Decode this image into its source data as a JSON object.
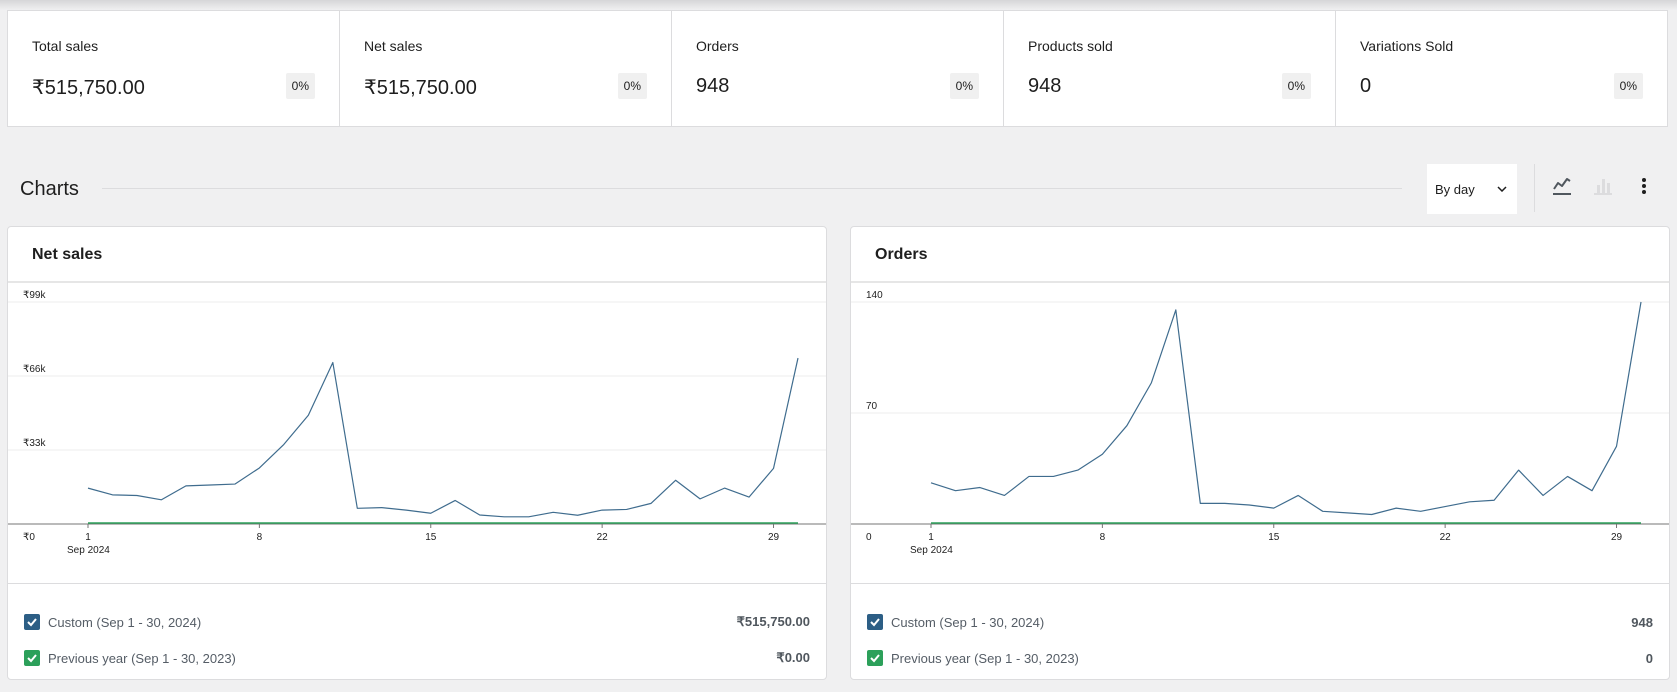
{
  "summary": [
    {
      "label": "Total sales",
      "value": "₹515,750.00",
      "delta": "0%"
    },
    {
      "label": "Net sales",
      "value": "₹515,750.00",
      "delta": "0%"
    },
    {
      "label": "Orders",
      "value": "948",
      "delta": "0%"
    },
    {
      "label": "Products sold",
      "value": "948",
      "delta": "0%"
    },
    {
      "label": "Variations Sold",
      "value": "0",
      "delta": "0%"
    }
  ],
  "charts_section": {
    "title": "Charts",
    "interval": "By day",
    "icons": [
      "line-chart-icon",
      "bar-chart-icon",
      "more-vertical-icon"
    ]
  },
  "colors": {
    "current": "#3f6c8e",
    "previous": "#2ca05a",
    "checkbox_current": "#2c5e85",
    "checkbox_previous": "#2ca05a"
  },
  "charts": [
    {
      "title": "Net sales",
      "y_ticks": [
        "₹99k",
        "₹66k",
        "₹33k",
        "₹0"
      ],
      "x_ticks": [
        "1",
        "8",
        "15",
        "22",
        "29"
      ],
      "x_subtitle": "Sep 2024",
      "legend": [
        {
          "label": "Custom (Sep 1 - 30, 2024)",
          "value": "₹515,750.00"
        },
        {
          "label": "Previous year (Sep 1 - 30, 2023)",
          "value": "₹0.00"
        }
      ]
    },
    {
      "title": "Orders",
      "y_ticks": [
        "140",
        "70",
        "0"
      ],
      "x_ticks": [
        "1",
        "8",
        "15",
        "22",
        "29"
      ],
      "x_subtitle": "Sep 2024",
      "legend": [
        {
          "label": "Custom (Sep 1 - 30, 2024)",
          "value": "948"
        },
        {
          "label": "Previous year (Sep 1 - 30, 2023)",
          "value": "0"
        }
      ]
    }
  ],
  "chart_data": [
    {
      "type": "line",
      "title": "Net sales",
      "x": [
        1,
        2,
        3,
        4,
        5,
        6,
        7,
        8,
        9,
        10,
        11,
        12,
        13,
        14,
        15,
        16,
        17,
        18,
        19,
        20,
        21,
        22,
        23,
        24,
        25,
        26,
        27,
        28,
        29,
        30
      ],
      "ylim": [
        0,
        99000
      ],
      "y_ticks": [
        0,
        33000,
        66000,
        99000
      ],
      "series": [
        {
          "name": "Custom (Sep 1 - 30, 2024)",
          "values": [
            16000,
            13000,
            12700,
            10800,
            17000,
            17400,
            17800,
            25000,
            35500,
            48500,
            72000,
            7000,
            7300,
            6200,
            4800,
            10500,
            4000,
            3200,
            3200,
            5200,
            3900,
            6200,
            6500,
            9200,
            19500,
            11200,
            16000,
            12000,
            24800,
            74000
          ]
        },
        {
          "name": "Previous year (Sep 1 - 30, 2023)",
          "values": [
            0,
            0,
            0,
            0,
            0,
            0,
            0,
            0,
            0,
            0,
            0,
            0,
            0,
            0,
            0,
            0,
            0,
            0,
            0,
            0,
            0,
            0,
            0,
            0,
            0,
            0,
            0,
            0,
            0,
            0
          ]
        }
      ]
    },
    {
      "type": "line",
      "title": "Orders",
      "x": [
        1,
        2,
        3,
        4,
        5,
        6,
        7,
        8,
        9,
        10,
        11,
        12,
        13,
        14,
        15,
        16,
        17,
        18,
        19,
        20,
        21,
        22,
        23,
        24,
        25,
        26,
        27,
        28,
        29,
        30
      ],
      "ylim": [
        0,
        140
      ],
      "y_ticks": [
        0,
        70,
        140
      ],
      "series": [
        {
          "name": "Custom (Sep 1 - 30, 2024)",
          "values": [
            26,
            21,
            23,
            18,
            30,
            30,
            34,
            44,
            62,
            89,
            135,
            13,
            13,
            12,
            10,
            18,
            8,
            7,
            6,
            10,
            8,
            11,
            14,
            15,
            34,
            18,
            30,
            21,
            49,
            140
          ]
        },
        {
          "name": "Previous year (Sep 1 - 30, 2023)",
          "values": [
            0,
            0,
            0,
            0,
            0,
            0,
            0,
            0,
            0,
            0,
            0,
            0,
            0,
            0,
            0,
            0,
            0,
            0,
            0,
            0,
            0,
            0,
            0,
            0,
            0,
            0,
            0,
            0,
            0,
            0
          ]
        }
      ]
    }
  ]
}
